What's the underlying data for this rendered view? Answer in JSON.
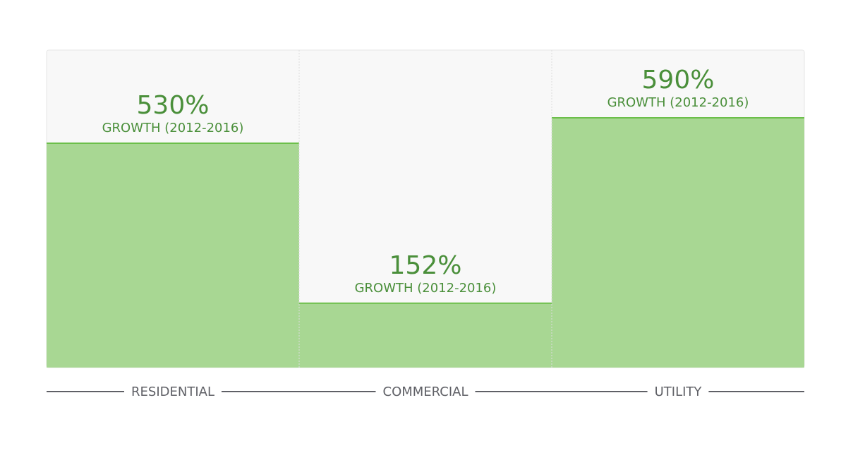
{
  "chart_data": {
    "type": "bar",
    "categories": [
      "RESIDENTIAL",
      "COMMERCIAL",
      "UTILITY"
    ],
    "values": [
      530,
      152,
      590
    ],
    "value_labels": [
      "530%",
      "152%",
      "590%"
    ],
    "sublabel": "GROWTH (2012-2016)",
    "ylim": [
      0,
      750
    ],
    "grid": false,
    "colors": {
      "bar": "#a8d793",
      "bar_top": "#6cbf4a",
      "panel_bg": "#f8f8f8",
      "panel_border": "#e6e6e6",
      "divider": "#dcdcdc",
      "value_text": "#4a8f3a",
      "axis_text": "#5f6066",
      "axis_line": "#5f6066"
    }
  }
}
